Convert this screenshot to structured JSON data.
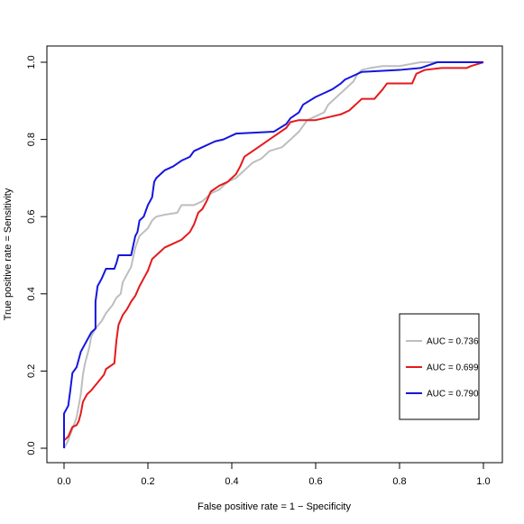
{
  "chart_data": {
    "type": "line",
    "title": "",
    "xlabel": "False positive rate = 1 − Specificity",
    "ylabel": "True positive rate = Sensitivity",
    "xlim": [
      0,
      1
    ],
    "ylim": [
      0,
      1
    ],
    "x_ticks": [
      "0.0",
      "0.2",
      "0.4",
      "0.6",
      "0.8",
      "1.0"
    ],
    "y_ticks": [
      "0.0",
      "0.2",
      "0.4",
      "0.6",
      "0.8",
      "1.0"
    ],
    "grid": false,
    "legend_position": "bottom-right",
    "series": [
      {
        "name": "AUC =  0.736",
        "color": "#bebebe",
        "points": [
          [
            0,
            0
          ],
          [
            0.01,
            0.02
          ],
          [
            0.02,
            0.05
          ],
          [
            0.03,
            0.08
          ],
          [
            0.04,
            0.14
          ],
          [
            0.045,
            0.19
          ],
          [
            0.05,
            0.22
          ],
          [
            0.06,
            0.26
          ],
          [
            0.065,
            0.29
          ],
          [
            0.075,
            0.31
          ],
          [
            0.09,
            0.33
          ],
          [
            0.1,
            0.35
          ],
          [
            0.115,
            0.37
          ],
          [
            0.125,
            0.39
          ],
          [
            0.135,
            0.4
          ],
          [
            0.14,
            0.43
          ],
          [
            0.15,
            0.45
          ],
          [
            0.16,
            0.47
          ],
          [
            0.17,
            0.52
          ],
          [
            0.18,
            0.55
          ],
          [
            0.19,
            0.56
          ],
          [
            0.2,
            0.57
          ],
          [
            0.21,
            0.59
          ],
          [
            0.22,
            0.6
          ],
          [
            0.24,
            0.605
          ],
          [
            0.27,
            0.61
          ],
          [
            0.28,
            0.63
          ],
          [
            0.31,
            0.63
          ],
          [
            0.33,
            0.64
          ],
          [
            0.35,
            0.66
          ],
          [
            0.37,
            0.67
          ],
          [
            0.39,
            0.69
          ],
          [
            0.41,
            0.7
          ],
          [
            0.43,
            0.72
          ],
          [
            0.45,
            0.74
          ],
          [
            0.47,
            0.75
          ],
          [
            0.49,
            0.77
          ],
          [
            0.52,
            0.78
          ],
          [
            0.54,
            0.8
          ],
          [
            0.56,
            0.82
          ],
          [
            0.58,
            0.85
          ],
          [
            0.6,
            0.86
          ],
          [
            0.62,
            0.87
          ],
          [
            0.63,
            0.89
          ],
          [
            0.65,
            0.91
          ],
          [
            0.67,
            0.93
          ],
          [
            0.69,
            0.95
          ],
          [
            0.7,
            0.97
          ],
          [
            0.71,
            0.98
          ],
          [
            0.73,
            0.985
          ],
          [
            0.76,
            0.99
          ],
          [
            0.8,
            0.99
          ],
          [
            0.85,
            1.0
          ],
          [
            0.9,
            1.0
          ],
          [
            0.95,
            1.0
          ],
          [
            1.0,
            1.0
          ]
        ]
      },
      {
        "name": "AUC =  0.699",
        "color": "#e41a1c",
        "points": [
          [
            0,
            0.02
          ],
          [
            0.01,
            0.03
          ],
          [
            0.02,
            0.055
          ],
          [
            0.03,
            0.06
          ],
          [
            0.035,
            0.07
          ],
          [
            0.04,
            0.09
          ],
          [
            0.045,
            0.12
          ],
          [
            0.055,
            0.14
          ],
          [
            0.065,
            0.15
          ],
          [
            0.08,
            0.17
          ],
          [
            0.095,
            0.19
          ],
          [
            0.1,
            0.205
          ],
          [
            0.12,
            0.22
          ],
          [
            0.125,
            0.28
          ],
          [
            0.13,
            0.32
          ],
          [
            0.14,
            0.345
          ],
          [
            0.15,
            0.36
          ],
          [
            0.16,
            0.38
          ],
          [
            0.17,
            0.395
          ],
          [
            0.18,
            0.42
          ],
          [
            0.19,
            0.44
          ],
          [
            0.2,
            0.46
          ],
          [
            0.21,
            0.49
          ],
          [
            0.23,
            0.51
          ],
          [
            0.24,
            0.52
          ],
          [
            0.26,
            0.53
          ],
          [
            0.28,
            0.54
          ],
          [
            0.3,
            0.56
          ],
          [
            0.31,
            0.58
          ],
          [
            0.32,
            0.61
          ],
          [
            0.33,
            0.62
          ],
          [
            0.34,
            0.64
          ],
          [
            0.35,
            0.665
          ],
          [
            0.37,
            0.68
          ],
          [
            0.39,
            0.69
          ],
          [
            0.41,
            0.71
          ],
          [
            0.42,
            0.73
          ],
          [
            0.43,
            0.755
          ],
          [
            0.45,
            0.77
          ],
          [
            0.47,
            0.785
          ],
          [
            0.49,
            0.8
          ],
          [
            0.51,
            0.815
          ],
          [
            0.53,
            0.83
          ],
          [
            0.54,
            0.845
          ],
          [
            0.56,
            0.85
          ],
          [
            0.58,
            0.85
          ],
          [
            0.6,
            0.85
          ],
          [
            0.62,
            0.855
          ],
          [
            0.64,
            0.86
          ],
          [
            0.66,
            0.865
          ],
          [
            0.68,
            0.875
          ],
          [
            0.69,
            0.885
          ],
          [
            0.7,
            0.895
          ],
          [
            0.71,
            0.905
          ],
          [
            0.74,
            0.905
          ],
          [
            0.76,
            0.93
          ],
          [
            0.77,
            0.945
          ],
          [
            0.83,
            0.945
          ],
          [
            0.84,
            0.97
          ],
          [
            0.86,
            0.98
          ],
          [
            0.9,
            0.985
          ],
          [
            0.96,
            0.985
          ],
          [
            0.97,
            0.99
          ],
          [
            1.0,
            1.0
          ]
        ]
      },
      {
        "name": "AUC =  0.790",
        "color": "#1515e0",
        "points": [
          [
            0,
            0
          ],
          [
            0,
            0.09
          ],
          [
            0.01,
            0.11
          ],
          [
            0.015,
            0.15
          ],
          [
            0.02,
            0.195
          ],
          [
            0.03,
            0.21
          ],
          [
            0.04,
            0.25
          ],
          [
            0.05,
            0.27
          ],
          [
            0.065,
            0.3
          ],
          [
            0.075,
            0.31
          ],
          [
            0.075,
            0.38
          ],
          [
            0.08,
            0.42
          ],
          [
            0.09,
            0.44
          ],
          [
            0.1,
            0.465
          ],
          [
            0.12,
            0.465
          ],
          [
            0.125,
            0.48
          ],
          [
            0.13,
            0.5
          ],
          [
            0.16,
            0.5
          ],
          [
            0.17,
            0.55
          ],
          [
            0.175,
            0.56
          ],
          [
            0.18,
            0.59
          ],
          [
            0.19,
            0.6
          ],
          [
            0.2,
            0.63
          ],
          [
            0.21,
            0.65
          ],
          [
            0.215,
            0.69
          ],
          [
            0.22,
            0.7
          ],
          [
            0.24,
            0.72
          ],
          [
            0.26,
            0.73
          ],
          [
            0.28,
            0.745
          ],
          [
            0.3,
            0.755
          ],
          [
            0.31,
            0.77
          ],
          [
            0.33,
            0.78
          ],
          [
            0.35,
            0.79
          ],
          [
            0.36,
            0.795
          ],
          [
            0.38,
            0.8
          ],
          [
            0.4,
            0.81
          ],
          [
            0.41,
            0.815
          ],
          [
            0.5,
            0.82
          ],
          [
            0.53,
            0.84
          ],
          [
            0.54,
            0.855
          ],
          [
            0.56,
            0.87
          ],
          [
            0.57,
            0.89
          ],
          [
            0.6,
            0.91
          ],
          [
            0.62,
            0.92
          ],
          [
            0.64,
            0.93
          ],
          [
            0.66,
            0.945
          ],
          [
            0.67,
            0.955
          ],
          [
            0.69,
            0.965
          ],
          [
            0.71,
            0.975
          ],
          [
            0.8,
            0.98
          ],
          [
            0.85,
            0.985
          ],
          [
            0.89,
            1.0
          ],
          [
            1.0,
            1.0
          ]
        ]
      }
    ]
  }
}
